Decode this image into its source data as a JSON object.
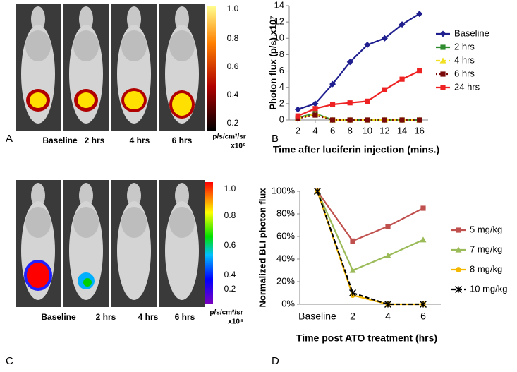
{
  "figure": {
    "panel_labels": [
      "A",
      "B",
      "C",
      "D"
    ],
    "images": [
      {
        "labels": [
          "Baseline",
          "2 hrs",
          "4 hrs",
          "6 hrs"
        ],
        "colorbar": {
          "ticks": [
            "1.0",
            "0.8",
            "0.6",
            "0.4",
            "0.2"
          ],
          "unit": "p/s/cm²/sr",
          "scale": "x10⁹"
        }
      },
      {
        "labels": [
          "Baseline",
          "2 hrs",
          "4 hrs",
          "6 hrs"
        ],
        "colorbar": {
          "ticks": [
            "1.0",
            "0.8",
            "0.6",
            "0.4",
            "0.2"
          ],
          "unit": "p/s/cm²/sr",
          "scale": "x10⁸"
        }
      }
    ]
  },
  "chart_data": [
    {
      "type": "line",
      "x_label": "Time after luciferin injection (mins.)",
      "y_label": "Photon flux (p/s) x10⁷",
      "x": [
        2,
        4,
        6,
        8,
        10,
        12,
        14,
        16
      ],
      "xlim": [
        1,
        17
      ],
      "xticks": [
        2,
        4,
        6,
        8,
        10,
        12,
        14,
        16
      ],
      "ylim": [
        0,
        14
      ],
      "yticks": [
        0,
        2,
        4,
        6,
        8,
        10,
        12,
        14
      ],
      "legend": "right",
      "series": [
        {
          "name": "Baseline",
          "color": "#1f1f8f",
          "marker": "diamond",
          "dash": "solid",
          "values": [
            1.3,
            2,
            4.4,
            7.1,
            9.2,
            10,
            11.7,
            13
          ]
        },
        {
          "name": "2 hrs",
          "color": "#2e8b2e",
          "marker": "square",
          "dash": "solid",
          "values": [
            0.3,
            0.8,
            0,
            0,
            0,
            0,
            0,
            0
          ]
        },
        {
          "name": "4 hrs",
          "color": "#f0e020",
          "marker": "triangle",
          "dash": "dashed",
          "values": [
            0.2,
            0.7,
            0,
            0,
            0,
            0,
            0,
            0
          ]
        },
        {
          "name": "6 hrs",
          "color": "#7a0a0a",
          "marker": "square",
          "dash": "dotted",
          "values": [
            0.2,
            0.6,
            0,
            0,
            0,
            0,
            0,
            0
          ]
        },
        {
          "name": "24 hrs",
          "color": "#ee2222",
          "marker": "square",
          "dash": "solid",
          "values": [
            0.5,
            1.4,
            1.9,
            2.1,
            2.3,
            3.7,
            5,
            6
          ]
        }
      ]
    },
    {
      "type": "line",
      "x_label": "Time post ATO treatment (hrs)",
      "y_label": "Normalized BLI photon flux",
      "categories": [
        "Baseline",
        "2",
        "4",
        "6"
      ],
      "ylim": [
        0,
        100
      ],
      "yticks": [
        {
          "value": 0,
          "label": "0%"
        },
        {
          "value": 20,
          "label": "20%"
        },
        {
          "value": 40,
          "label": "40%"
        },
        {
          "value": 60,
          "label": "60%"
        },
        {
          "value": 80,
          "label": "80%"
        },
        {
          "value": 100,
          "label": "100%"
        }
      ],
      "legend": "right",
      "series": [
        {
          "name": "5 mg/kg",
          "color": "#c0504d",
          "marker": "square",
          "dash": "solid",
          "values": [
            100,
            56,
            69,
            85
          ]
        },
        {
          "name": "7 mg/kg",
          "color": "#9bbb59",
          "marker": "triangle",
          "dash": "solid",
          "values": [
            100,
            30,
            43,
            57
          ]
        },
        {
          "name": "8 mg/kg",
          "color": "#f5b800",
          "marker": "circle",
          "dash": "solid",
          "values": [
            100,
            8,
            0,
            0
          ]
        },
        {
          "name": "10 mg/kg",
          "color": "#000000",
          "marker": "star",
          "dash": "dashed",
          "values": [
            100,
            10,
            0,
            0
          ]
        }
      ]
    }
  ]
}
